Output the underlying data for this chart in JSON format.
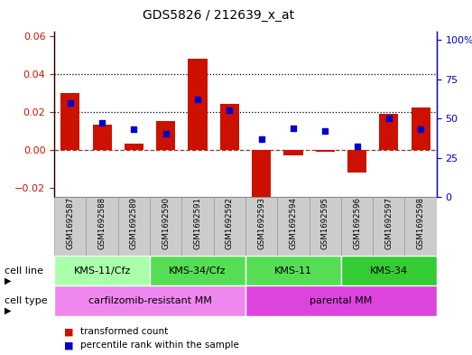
{
  "title": "GDS5826 / 212639_x_at",
  "samples": [
    "GSM1692587",
    "GSM1692588",
    "GSM1692589",
    "GSM1692590",
    "GSM1692591",
    "GSM1692592",
    "GSM1692593",
    "GSM1692594",
    "GSM1692595",
    "GSM1692596",
    "GSM1692597",
    "GSM1692598"
  ],
  "transformed_count": [
    0.03,
    0.013,
    0.003,
    0.015,
    0.048,
    0.024,
    -0.025,
    -0.003,
    -0.001,
    -0.012,
    0.019,
    0.022
  ],
  "percentile_rank": [
    0.6,
    0.47,
    0.43,
    0.4,
    0.62,
    0.55,
    0.37,
    0.44,
    0.42,
    0.32,
    0.5,
    0.43
  ],
  "bar_color": "#cc1100",
  "dot_color": "#0000cc",
  "left_ylim": [
    -0.025,
    0.062
  ],
  "right_ylim": [
    0,
    1.05
  ],
  "left_yticks": [
    -0.02,
    0.0,
    0.02,
    0.04,
    0.06
  ],
  "right_yticks": [
    0,
    0.25,
    0.5,
    0.75,
    1.0
  ],
  "right_yticklabels": [
    "0",
    "25",
    "50",
    "75",
    "100%"
  ],
  "hline_y": [
    0.02,
    0.04
  ],
  "zero_line_color": "#aa3333",
  "cell_line_groups": [
    {
      "label": "KMS-11/Cfz",
      "start": 0,
      "end": 3,
      "color": "#aaffaa"
    },
    {
      "label": "KMS-34/Cfz",
      "start": 3,
      "end": 6,
      "color": "#55dd55"
    },
    {
      "label": "KMS-11",
      "start": 6,
      "end": 9,
      "color": "#55dd55"
    },
    {
      "label": "KMS-34",
      "start": 9,
      "end": 12,
      "color": "#33cc33"
    }
  ],
  "cell_type_groups": [
    {
      "label": "carfilzomib-resistant MM",
      "start": 0,
      "end": 6,
      "color": "#ee88ee"
    },
    {
      "label": "parental MM",
      "start": 6,
      "end": 12,
      "color": "#dd44dd"
    }
  ],
  "sample_box_color": "#cccccc",
  "sample_box_edge": "#999999",
  "legend_items": [
    {
      "label": "transformed count",
      "color": "#cc1100"
    },
    {
      "label": "percentile rank within the sample",
      "color": "#0000cc"
    }
  ]
}
